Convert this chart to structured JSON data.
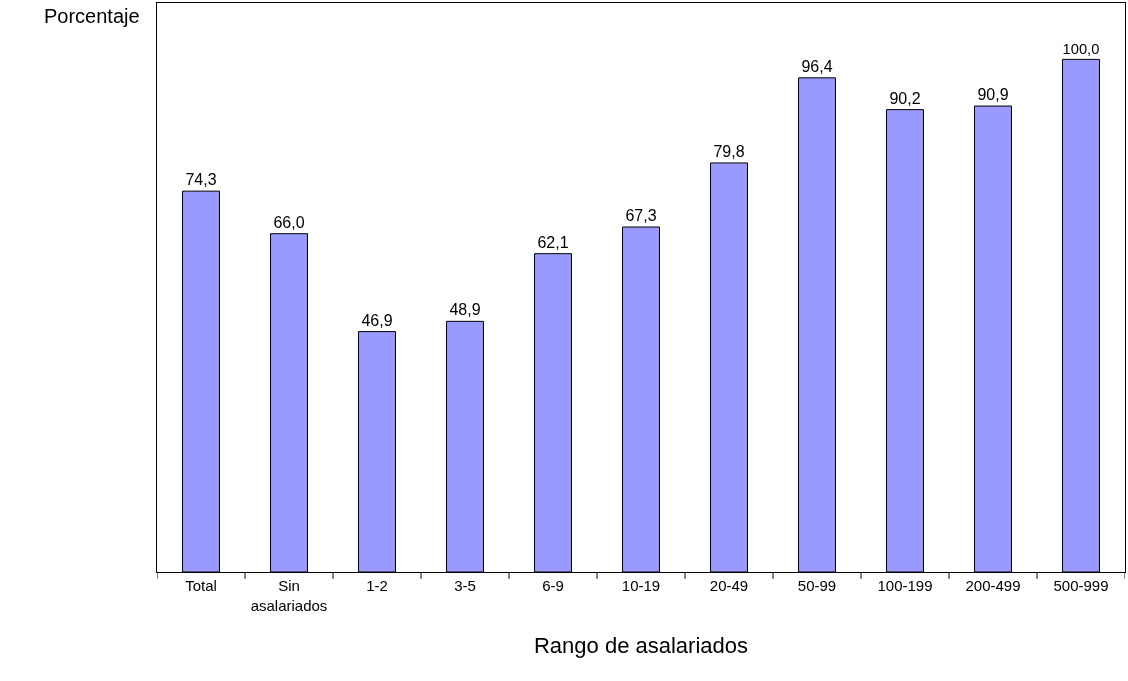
{
  "chart_data": {
    "type": "bar",
    "ylabel": "Porcentaje",
    "xlabel": "Rango de asalariados",
    "categories": [
      "Total",
      "Sin asalariados",
      "1-2",
      "3-5",
      "6-9",
      "10-19",
      "20-49",
      "50-99",
      "100-199",
      "200-499",
      "500-999"
    ],
    "values": [
      74.3,
      66.0,
      46.9,
      48.9,
      62.1,
      67.3,
      79.8,
      96.4,
      90.2,
      90.9,
      100.0
    ],
    "value_labels": [
      "74,3",
      "66,0",
      "46,9",
      "48,9",
      "62,1",
      "67,3",
      "79,8",
      "96,4",
      "90,2",
      "90,9",
      "100,0"
    ],
    "color": "#9999ff",
    "ylim": [
      0,
      111
    ]
  }
}
